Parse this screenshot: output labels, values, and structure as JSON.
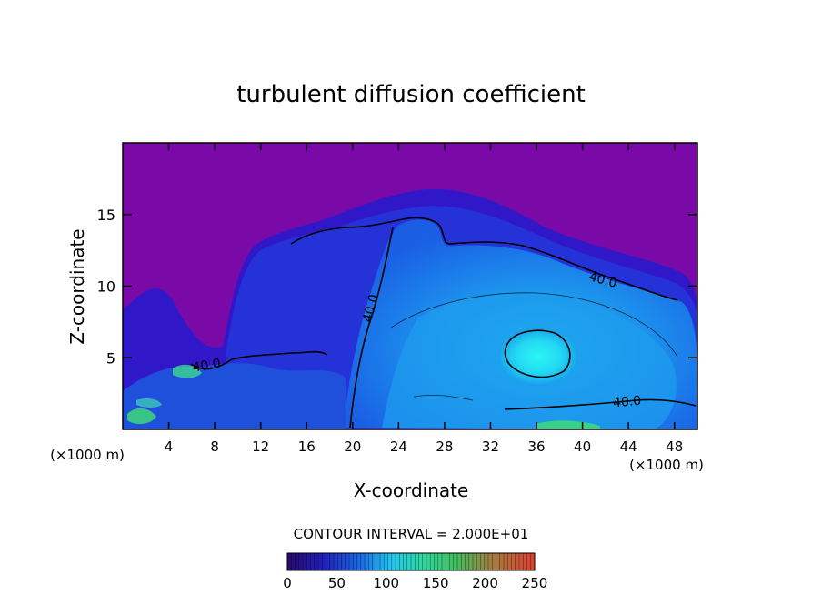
{
  "chart_data": {
    "type": "heatmap",
    "title": "turbulent diffusion coefficient",
    "xlabel": "X-coordinate",
    "ylabel": "Z-coordinate",
    "x_unit_label": "(×1000 m)",
    "x_unit_label_right": "(×1000 m)",
    "xlim": [
      0,
      50
    ],
    "ylim": [
      0,
      20
    ],
    "x_ticks": [
      4,
      8,
      12,
      16,
      20,
      24,
      28,
      32,
      36,
      40,
      44,
      48
    ],
    "y_ticks": [
      5,
      10,
      15
    ],
    "contour_interval_text": "CONTOUR INTERVAL = 2.000E+01",
    "contour_labels": [
      "40.0",
      "40.0",
      "40.0",
      "40.0"
    ],
    "colorbar": {
      "min": 0,
      "max": 250,
      "ticks": [
        0,
        50,
        100,
        150,
        200,
        250
      ]
    },
    "regions": {
      "background_value": 0,
      "cloud_envelope_value": 30,
      "inner_region_value": 60,
      "core_value": 100,
      "core_center": [
        36,
        5.5
      ]
    },
    "colors": {
      "background": "#7a0aa8",
      "low": "#2a14c8",
      "mid": "#1a6ee8",
      "high": "#22c8f0",
      "core": "#28f0f0",
      "green": "#40e070"
    }
  }
}
